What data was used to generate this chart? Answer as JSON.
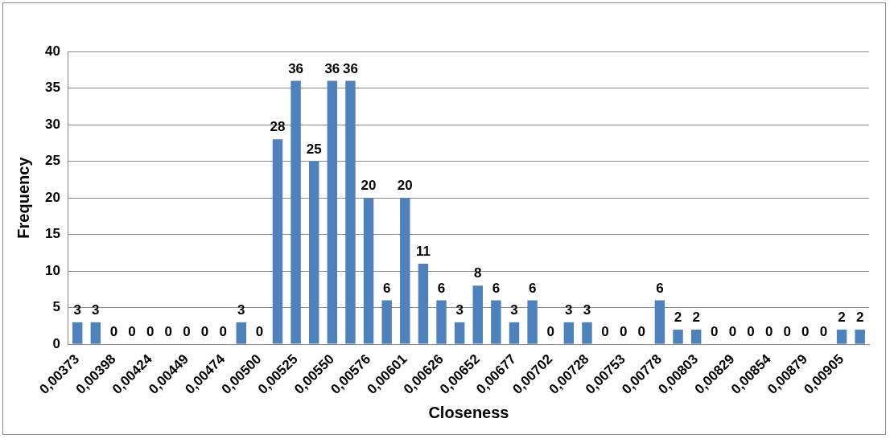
{
  "chart_data": {
    "type": "bar",
    "xlabel": "Closeness",
    "ylabel": "Frequency",
    "categories": [
      "0,00373",
      null,
      "0,00398",
      null,
      "0,00424",
      null,
      "0,00449",
      null,
      "0,00474",
      null,
      "0,00500",
      null,
      "0,00525",
      null,
      "0,00550",
      null,
      "0,00576",
      null,
      "0,00601",
      null,
      "0,00626",
      null,
      "0,00652",
      null,
      "0,00677",
      null,
      "0,00702",
      null,
      "0,00728",
      null,
      "0,00753",
      null,
      "0,00778",
      null,
      "0,00803",
      null,
      "0,00829",
      null,
      "0,00854",
      null,
      "0,00879",
      null,
      "0,00905",
      null
    ],
    "values": [
      3,
      3,
      0,
      0,
      0,
      0,
      0,
      0,
      0,
      3,
      0,
      28,
      36,
      25,
      36,
      36,
      20,
      6,
      20,
      11,
      6,
      3,
      8,
      6,
      3,
      6,
      0,
      3,
      3,
      0,
      0,
      0,
      6,
      2,
      2,
      0,
      0,
      0,
      0,
      0,
      0,
      0,
      2,
      2
    ],
    "color": "#4f81bd",
    "ylim": [
      0,
      40
    ],
    "yticks": [
      0,
      5,
      10,
      15,
      20,
      25,
      30,
      35,
      40
    ],
    "grid": "y",
    "data_labels": true
  }
}
